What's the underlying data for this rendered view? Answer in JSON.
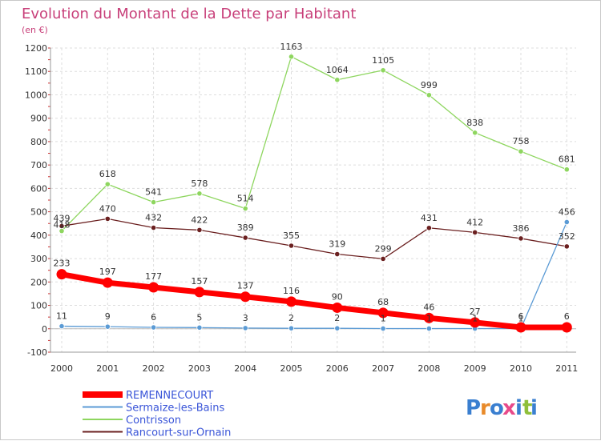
{
  "chart_data": {
    "type": "line",
    "title": "Evolution du Montant de la Dette par Habitant",
    "subtitle": "(en €)",
    "x": [
      "2000",
      "2001",
      "2002",
      "2003",
      "2004",
      "2005",
      "2006",
      "2007",
      "2008",
      "2009",
      "2010",
      "2011"
    ],
    "ylim": [
      -100,
      1200
    ],
    "yticks": [
      -100,
      0,
      100,
      200,
      300,
      400,
      500,
      600,
      700,
      800,
      900,
      1000,
      1100,
      1200
    ],
    "grid": true,
    "legend_position": "bottom-left",
    "series": [
      {
        "name": "REMENNECOURT",
        "color": "#ff0000",
        "values": [
          233,
          197,
          177,
          157,
          137,
          116,
          90,
          68,
          46,
          27,
          6,
          6
        ]
      },
      {
        "name": "Sermaize-les-Bains",
        "color": "#5b9bd5",
        "values": [
          11,
          9,
          6,
          5,
          3,
          2,
          2,
          1,
          1,
          1,
          1,
          456
        ]
      },
      {
        "name": "Contrisson",
        "color": "#8ed65f",
        "values": [
          418,
          618,
          541,
          578,
          514,
          1163,
          1064,
          1105,
          999,
          838,
          758,
          681
        ]
      },
      {
        "name": "Rancourt-sur-Ornain",
        "color": "#6b2020",
        "values": [
          439,
          470,
          432,
          422,
          389,
          355,
          319,
          299,
          431,
          412,
          386,
          352
        ]
      }
    ]
  },
  "logo": {
    "letters": [
      "P",
      "r",
      "o",
      "x",
      "i",
      "t",
      "i"
    ],
    "colors": [
      "#3a7fd0",
      "#e88a2a",
      "#3a7fd0",
      "#e84a8a",
      "#3a7fd0",
      "#8fbf3a",
      "#3a7fd0"
    ]
  }
}
